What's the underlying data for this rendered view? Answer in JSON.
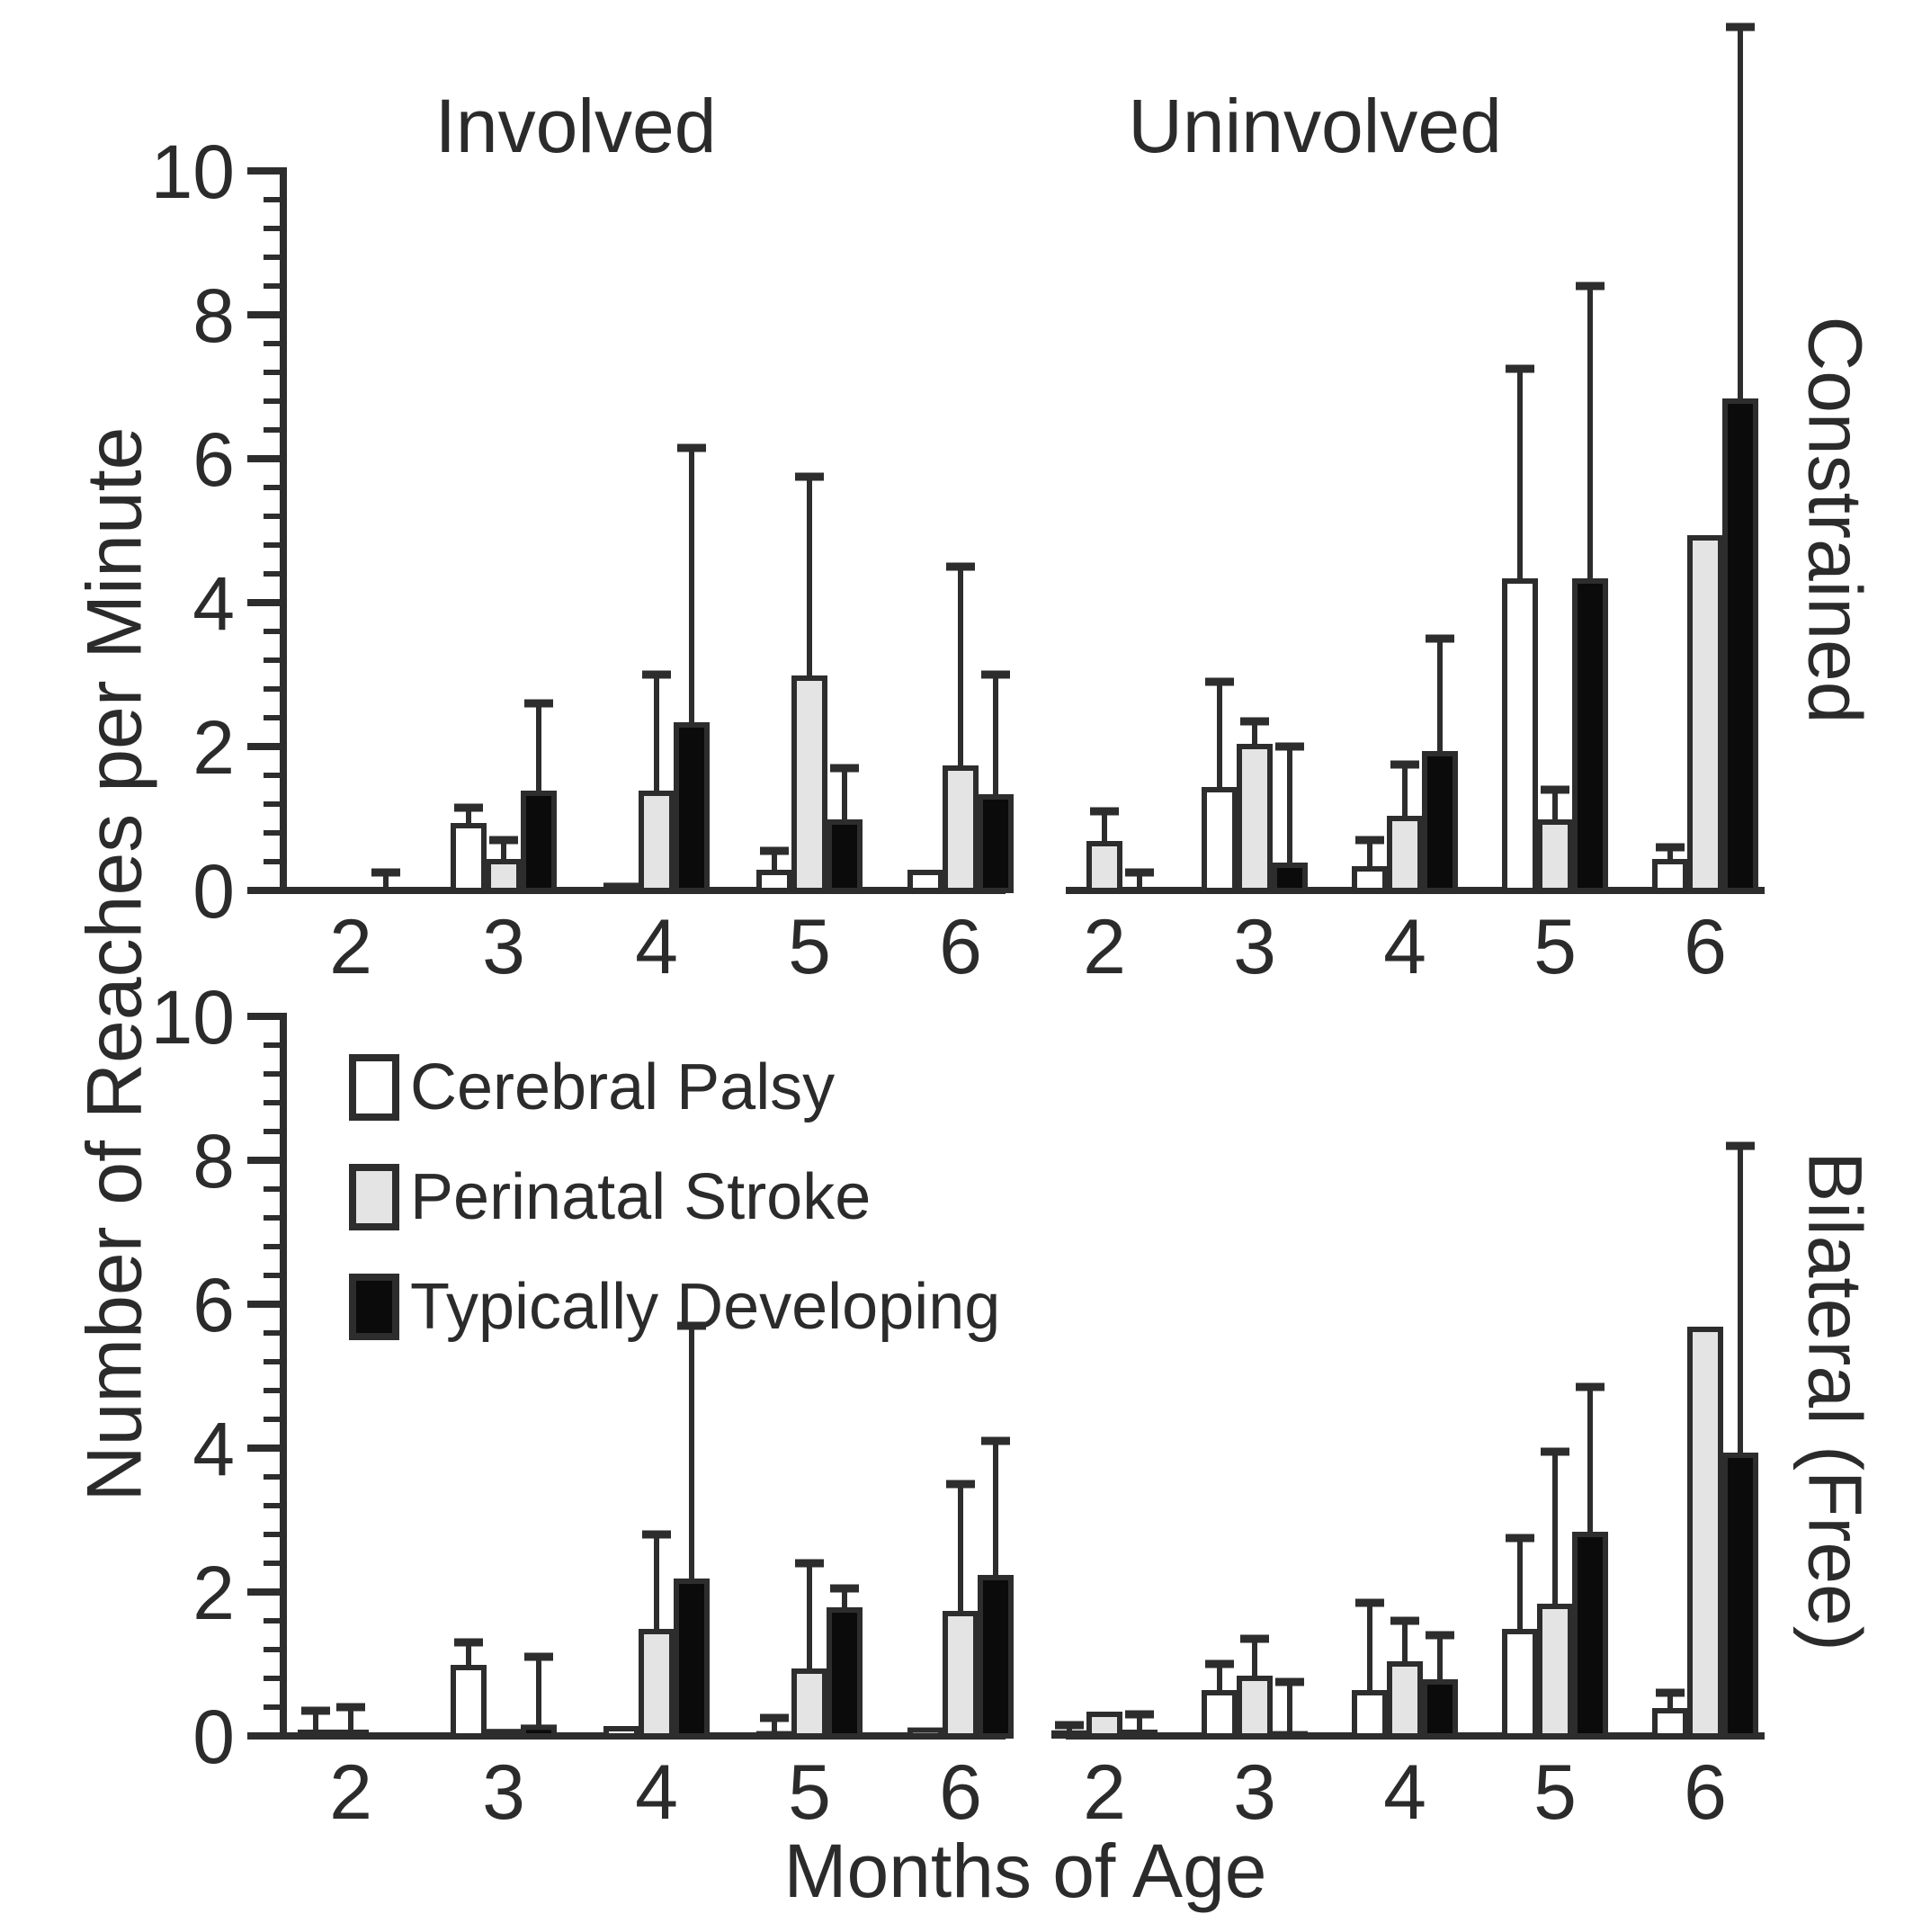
{
  "figure": {
    "y_axis_title": "Number of Reaches per Minute",
    "x_axis_title": "Months of Age",
    "column_titles": [
      "Involved",
      "Uninvolved"
    ],
    "row_titles": [
      "Constrained",
      "Bilateral (Free)"
    ]
  },
  "legend": {
    "items": [
      {
        "label": "Cerebral Palsy",
        "color": "#ffffff"
      },
      {
        "label": "Perinatal Stroke",
        "color": "#e4e4e4"
      },
      {
        "label": "Typically Developing",
        "color": "#0b0b0b"
      }
    ]
  },
  "chart_data": {
    "type": "bar",
    "categories": [
      2,
      3,
      4,
      5,
      6
    ],
    "y_ticks": [
      0,
      2,
      4,
      6,
      8,
      10
    ],
    "ylim": [
      0,
      10
    ],
    "minor_tick_step": 0.4,
    "grid": false,
    "legend_position": "inside-bottom-left-panel",
    "xlabel": "Months of Age",
    "ylabel": "Number of Reaches per Minute",
    "outline_color": "#2d2d2d",
    "bar_colors": [
      "#ffffff",
      "#e4e4e4",
      "#0b0b0b"
    ],
    "series_names": [
      "Cerebral Palsy",
      "Perinatal Stroke",
      "Typically Developing"
    ],
    "error_note": "errors_top are absolute values at the top of upper error whiskers; null = no whisker drawn",
    "panels": [
      {
        "id": "involved-constrained",
        "column": "Involved",
        "row": "Constrained",
        "series": [
          {
            "name": "Cerebral Palsy",
            "values": [
              0,
              0.9,
              0.07,
              0.25,
              0.25
            ],
            "errors_top": [
              null,
              1.15,
              null,
              0.55,
              null
            ]
          },
          {
            "name": "Perinatal Stroke",
            "values": [
              0,
              0.4,
              1.35,
              2.95,
              1.7
            ],
            "errors_top": [
              null,
              0.7,
              3.0,
              5.75,
              4.5
            ]
          },
          {
            "name": "Typically Developing",
            "values": [
              0,
              1.35,
              2.3,
              0.95,
              1.3
            ],
            "errors_top": [
              0.25,
              2.6,
              6.15,
              1.7,
              3.0
            ]
          }
        ]
      },
      {
        "id": "uninvolved-constrained",
        "column": "Uninvolved",
        "row": "Constrained",
        "series": [
          {
            "name": "Cerebral Palsy",
            "values": [
              0,
              1.4,
              0.3,
              4.3,
              0.4
            ],
            "errors_top": [
              null,
              2.9,
              0.7,
              7.25,
              0.6
            ]
          },
          {
            "name": "Perinatal Stroke",
            "values": [
              0.65,
              2.0,
              1.0,
              0.95,
              4.9
            ],
            "errors_top": [
              1.1,
              2.35,
              1.75,
              1.4,
              null
            ]
          },
          {
            "name": "Typically Developing",
            "values": [
              0,
              0.35,
              1.9,
              4.3,
              6.8
            ],
            "errors_top": [
              0.25,
              2.0,
              3.5,
              8.4,
              12.0
            ]
          }
        ]
      },
      {
        "id": "involved-bilateral-free",
        "column": "Involved",
        "row": "Bilateral (Free)",
        "series": [
          {
            "name": "Cerebral Palsy",
            "values": [
              0.05,
              0.95,
              0.1,
              0.03,
              0.08
            ],
            "errors_top": [
              0.35,
              1.3,
              null,
              0.25,
              null
            ]
          },
          {
            "name": "Perinatal Stroke",
            "values": [
              0.05,
              0.06,
              1.45,
              0.9,
              1.7
            ],
            "errors_top": [
              0.4,
              null,
              2.8,
              2.4,
              3.5
            ]
          },
          {
            "name": "Typically Developing",
            "values": [
              0,
              0.12,
              2.15,
              1.75,
              2.2
            ],
            "errors_top": [
              null,
              1.1,
              5.7,
              2.05,
              4.1
            ]
          }
        ]
      },
      {
        "id": "uninvolved-bilateral-free",
        "column": "Uninvolved",
        "row": "Bilateral (Free)",
        "series": [
          {
            "name": "Cerebral Palsy",
            "values": [
              0.04,
              0.6,
              0.6,
              1.45,
              0.35
            ],
            "errors_top": [
              0.15,
              1.0,
              1.85,
              2.75,
              0.6
            ]
          },
          {
            "name": "Perinatal Stroke",
            "values": [
              0.3,
              0.8,
              1.0,
              1.8,
              5.65
            ],
            "errors_top": [
              null,
              1.35,
              1.6,
              3.95,
              null
            ]
          },
          {
            "name": "Typically Developing",
            "values": [
              0.05,
              0.03,
              0.75,
              2.8,
              3.9
            ],
            "errors_top": [
              0.3,
              0.75,
              1.4,
              4.85,
              8.2
            ]
          }
        ]
      }
    ]
  }
}
